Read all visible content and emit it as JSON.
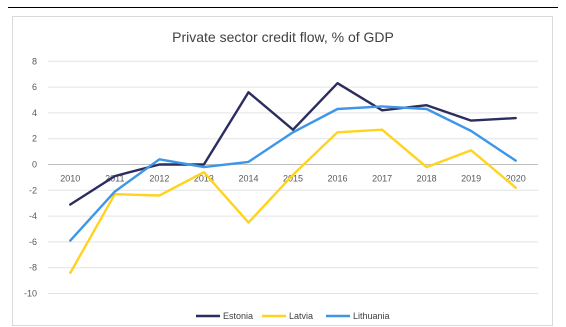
{
  "chart_data": {
    "type": "line",
    "title": "Private sector credit flow, % of GDP",
    "x": [
      "2010",
      "2011",
      "2012",
      "2013",
      "2014",
      "2015",
      "2016",
      "2017",
      "2018",
      "2019",
      "2020"
    ],
    "ylim": [
      -10,
      8
    ],
    "yticks": [
      8,
      6,
      4,
      2,
      0,
      -2,
      -4,
      -6,
      -8,
      -10
    ],
    "grid": true,
    "legend_position": "bottom",
    "series": [
      {
        "name": "Estonia",
        "color": "#2b2d5f",
        "values": [
          -3.1,
          -0.9,
          0.0,
          0.0,
          5.6,
          2.7,
          6.3,
          4.2,
          4.6,
          3.4,
          3.6
        ]
      },
      {
        "name": "Latvia",
        "color": "#ffd320",
        "values": [
          -8.4,
          -2.3,
          -2.4,
          -0.6,
          -4.5,
          -0.8,
          2.5,
          2.7,
          -0.2,
          1.1,
          -1.8
        ]
      },
      {
        "name": "Lithuania",
        "color": "#3d96e8",
        "values": [
          -5.9,
          -2.1,
          0.4,
          -0.2,
          0.2,
          2.5,
          4.3,
          4.5,
          4.3,
          2.6,
          0.3
        ]
      }
    ]
  }
}
